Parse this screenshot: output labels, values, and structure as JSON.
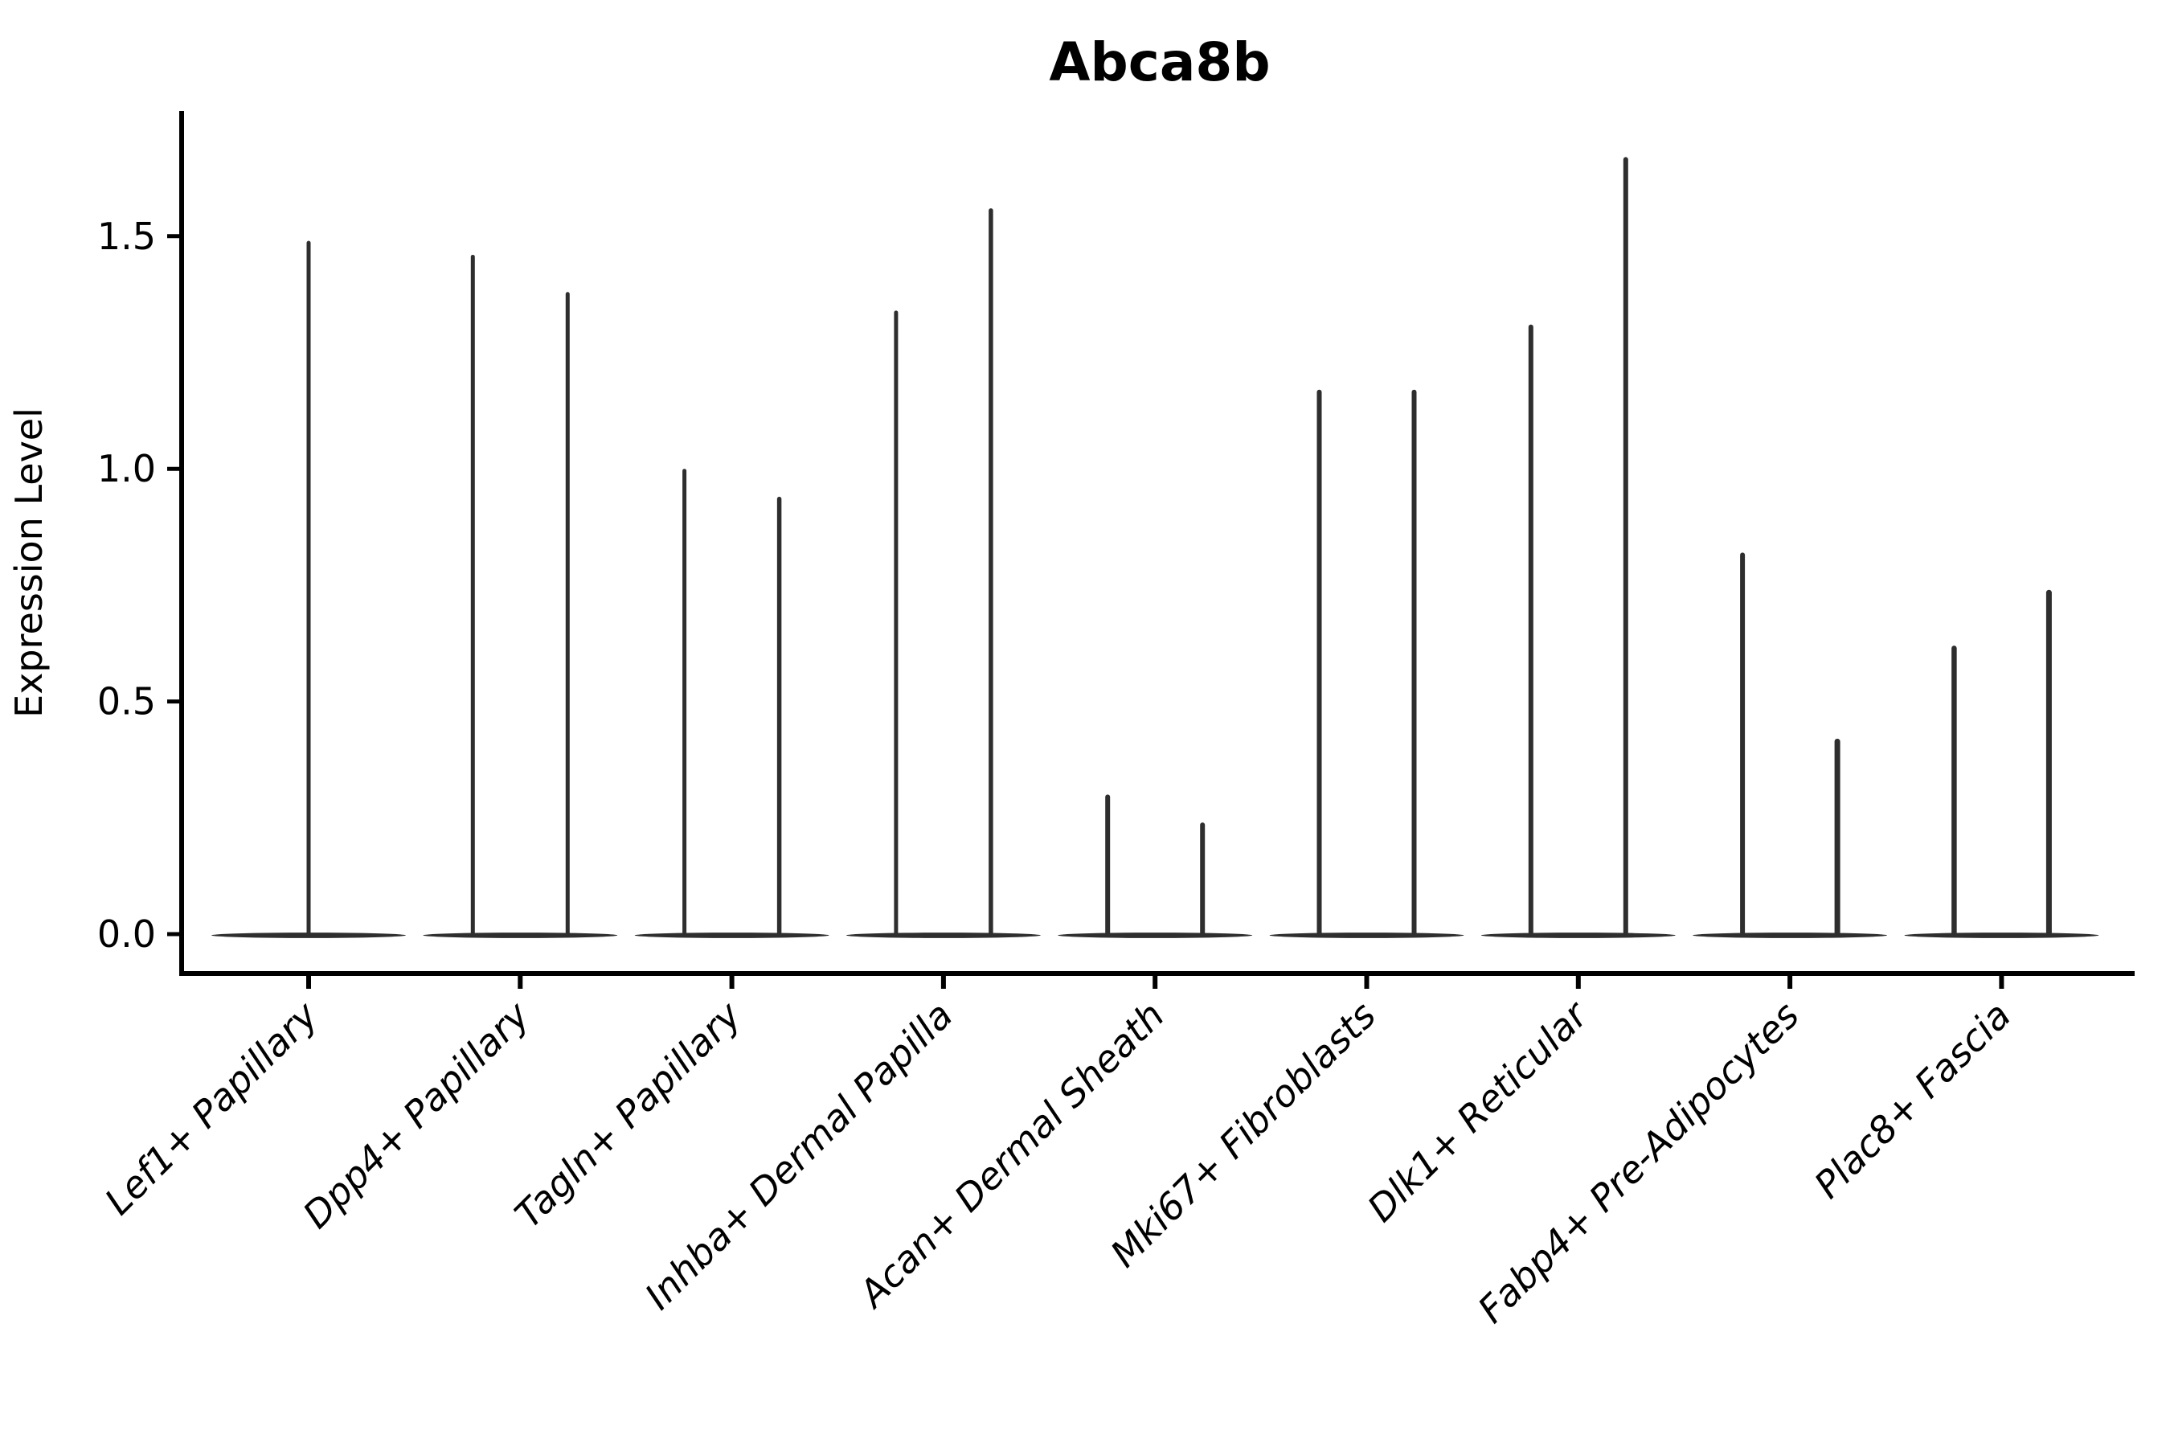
{
  "chart_data": {
    "type": "violin",
    "title": "Abca8b",
    "ylabel": "Expression Level",
    "xlabel": "",
    "ytick_labels": [
      "0.0",
      "0.5",
      "1.0",
      "1.5"
    ],
    "ytick_values": [
      0.0,
      0.5,
      1.0,
      1.5
    ],
    "ylim": [
      -0.09,
      1.77
    ],
    "grid": false,
    "legend": "none",
    "violin_color": "#2e2e2e",
    "axis_color": "#000000",
    "baseline_value": 0.0,
    "categories": [
      "Lef1+ Papillary",
      "Dpp4+ Papillary",
      "Tagln+ Papillary",
      "Inhba+ Dermal Papilla",
      "Acan+ Dermal Sheath",
      "Mki67+ Fibroblasts",
      "Dlk1+ Reticular",
      "Fabp4+ Pre-Adipocytes",
      "Plac8+ Fascia"
    ],
    "violins": [
      {
        "category": "Lef1+ Papillary",
        "spikes": [
          {
            "pos": "center",
            "max": 1.49,
            "w": 5
          }
        ]
      },
      {
        "category": "Dpp4+ Papillary",
        "spikes": [
          {
            "pos": "left",
            "max": 1.46,
            "w": 5
          },
          {
            "pos": "right",
            "max": 1.38,
            "w": 5
          }
        ]
      },
      {
        "category": "Tagln+ Papillary",
        "spikes": [
          {
            "pos": "left",
            "max": 1.0,
            "w": 5
          },
          {
            "pos": "right",
            "max": 0.94,
            "w": 5.5
          }
        ]
      },
      {
        "category": "Inhba+ Dermal Papilla",
        "spikes": [
          {
            "pos": "left",
            "max": 1.34,
            "w": 5
          },
          {
            "pos": "right",
            "max": 1.56,
            "w": 5.5
          }
        ]
      },
      {
        "category": "Acan+ Dermal Sheath",
        "spikes": [
          {
            "pos": "left",
            "max": 0.3,
            "w": 6
          },
          {
            "pos": "right",
            "max": 0.24,
            "w": 6
          }
        ]
      },
      {
        "category": "Mki67+ Fibroblasts",
        "spikes": [
          {
            "pos": "left",
            "max": 1.17,
            "w": 6
          },
          {
            "pos": "right",
            "max": 1.17,
            "w": 6
          }
        ]
      },
      {
        "category": "Dlk1+ Reticular",
        "spikes": [
          {
            "pos": "left",
            "max": 1.31,
            "w": 6
          },
          {
            "pos": "right",
            "max": 1.67,
            "w": 6
          }
        ]
      },
      {
        "category": "Fabp4+ Pre-Adipocytes",
        "spikes": [
          {
            "pos": "left",
            "max": 0.82,
            "w": 6
          },
          {
            "pos": "right",
            "max": 0.42,
            "w": 7
          }
        ]
      },
      {
        "category": "Plac8+ Fascia",
        "spikes": [
          {
            "pos": "left",
            "max": 0.62,
            "w": 6.5
          },
          {
            "pos": "right",
            "max": 0.74,
            "w": 7
          }
        ]
      }
    ]
  }
}
